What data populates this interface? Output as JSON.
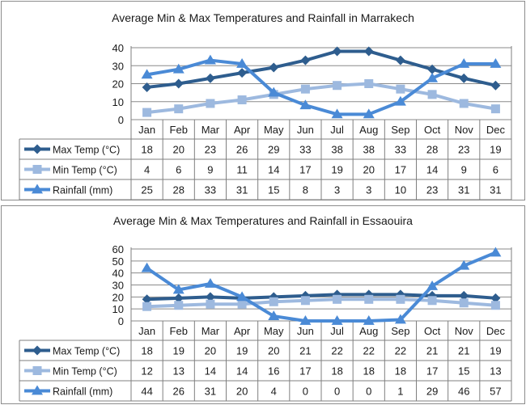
{
  "chart_data": [
    {
      "type": "line",
      "title": "Average Min & Max Temperatures and Rainfall  in Marrakech",
      "categories": [
        "Jan",
        "Feb",
        "Mar",
        "Apr",
        "May",
        "Jun",
        "Jul",
        "Aug",
        "Sep",
        "Oct",
        "Nov",
        "Dec"
      ],
      "ylim": [
        0,
        40
      ],
      "yticks": [
        "0",
        "10",
        "20",
        "30",
        "40"
      ],
      "grid": true,
      "legend": "data-table",
      "series": [
        {
          "name": "Max Temp (°C)",
          "color": "#2e5d8e",
          "marker": "diamond",
          "values": [
            18,
            20,
            23,
            26,
            29,
            33,
            38,
            38,
            33,
            28,
            23,
            19
          ]
        },
        {
          "name": "Min Temp (°C)",
          "color": "#9db9df",
          "marker": "square",
          "values": [
            4,
            6,
            9,
            11,
            14,
            17,
            19,
            20,
            17,
            14,
            9,
            6
          ]
        },
        {
          "name": "Rainfall (mm)",
          "color": "#4a8ad6",
          "marker": "triangle",
          "values": [
            25,
            28,
            33,
            31,
            15,
            8,
            3,
            3,
            10,
            23,
            31,
            31
          ]
        }
      ]
    },
    {
      "type": "line",
      "title": "Average Min & Max Temperatures and Rainfall  in Essaouira",
      "categories": [
        "Jan",
        "Feb",
        "Mar",
        "Apr",
        "May",
        "Jun",
        "Jul",
        "Aug",
        "Sep",
        "Oct",
        "Nov",
        "Dec"
      ],
      "ylim": [
        0,
        60
      ],
      "yticks": [
        "0",
        "10",
        "20",
        "30",
        "40",
        "50",
        "60"
      ],
      "grid": true,
      "legend": "data-table",
      "series": [
        {
          "name": "Max Temp (°C)",
          "color": "#2e5d8e",
          "marker": "diamond",
          "values": [
            18,
            19,
            20,
            19,
            20,
            21,
            22,
            22,
            22,
            21,
            21,
            19
          ]
        },
        {
          "name": "Min Temp (°C)",
          "color": "#9db9df",
          "marker": "square",
          "values": [
            12,
            13,
            14,
            14,
            16,
            17,
            18,
            18,
            18,
            17,
            15,
            13
          ]
        },
        {
          "name": "Rainfall (mm)",
          "color": "#4a8ad6",
          "marker": "triangle",
          "values": [
            44,
            26,
            31,
            20,
            4,
            0,
            0,
            0,
            1,
            29,
            46,
            57
          ]
        }
      ]
    }
  ]
}
